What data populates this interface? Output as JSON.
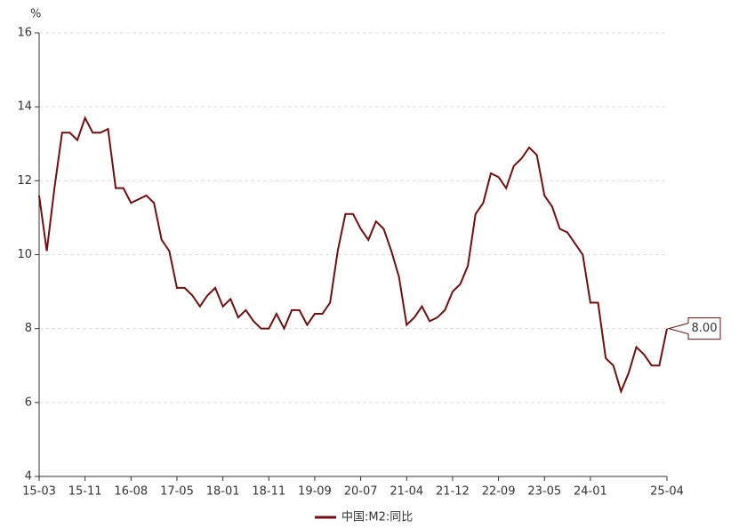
{
  "chart_data": {
    "type": "line",
    "y_unit": "%",
    "categories": [
      "15-03",
      null,
      null,
      null,
      null,
      null,
      "15-11",
      null,
      null,
      null,
      null,
      null,
      "16-08",
      null,
      null,
      null,
      null,
      null,
      "17-05",
      null,
      null,
      null,
      null,
      null,
      "18-01",
      null,
      null,
      null,
      null,
      null,
      "18-11",
      null,
      null,
      null,
      null,
      null,
      "19-09",
      null,
      null,
      null,
      null,
      null,
      "20-07",
      null,
      null,
      null,
      null,
      null,
      "21-04",
      null,
      null,
      null,
      null,
      null,
      "21-12",
      null,
      null,
      null,
      null,
      null,
      "22-09",
      null,
      null,
      null,
      null,
      null,
      "23-05",
      null,
      null,
      null,
      null,
      null,
      "24-01",
      null,
      null,
      null,
      null,
      null,
      null,
      null,
      null,
      null,
      "25-04"
    ],
    "series": [
      {
        "name": "中国:M2:同比",
        "color": "#760d0d",
        "values": [
          11.6,
          10.1,
          11.8,
          13.3,
          13.3,
          13.1,
          13.7,
          13.3,
          13.3,
          13.4,
          11.8,
          11.8,
          11.4,
          11.5,
          11.6,
          11.4,
          10.4,
          10.1,
          9.1,
          9.1,
          8.9,
          8.6,
          8.9,
          9.1,
          8.6,
          8.8,
          8.3,
          8.5,
          8.2,
          8.0,
          8.0,
          8.4,
          8.0,
          8.5,
          8.5,
          8.1,
          8.4,
          8.4,
          8.7,
          10.1,
          11.1,
          11.1,
          10.7,
          10.4,
          10.9,
          10.7,
          10.1,
          9.4,
          8.1,
          8.3,
          8.6,
          8.2,
          8.3,
          8.5,
          9.0,
          9.2,
          9.7,
          11.1,
          11.4,
          12.2,
          12.1,
          11.8,
          12.4,
          12.6,
          12.9,
          12.7,
          11.6,
          11.3,
          10.7,
          10.6,
          10.3,
          10.0,
          8.7,
          8.7,
          7.2,
          7.0,
          6.3,
          6.8,
          7.5,
          7.3,
          7.0,
          7.0,
          8.0
        ],
        "value_labels": [
          null,
          null,
          null,
          null,
          null,
          null,
          null,
          null,
          null,
          null,
          null,
          null,
          null,
          null,
          null,
          null,
          null,
          null,
          null,
          null,
          null,
          null,
          null,
          null,
          null,
          null,
          null,
          null,
          null,
          null,
          null,
          null,
          null,
          null,
          null,
          null,
          null,
          null,
          null,
          null,
          null,
          null,
          null,
          null,
          null,
          null,
          null,
          null,
          null,
          null,
          null,
          null,
          null,
          null,
          null,
          null,
          null,
          null,
          null,
          null,
          null,
          null,
          null,
          null,
          null,
          null,
          null,
          null,
          null,
          null,
          null,
          null,
          null,
          null,
          null,
          null,
          null,
          null,
          null,
          null,
          null,
          null,
          "8.00"
        ]
      }
    ],
    "ylim": [
      4,
      16
    ],
    "yticks": [
      4,
      6,
      8,
      10,
      12,
      14,
      16
    ],
    "grid": true,
    "legend": "bottom"
  }
}
